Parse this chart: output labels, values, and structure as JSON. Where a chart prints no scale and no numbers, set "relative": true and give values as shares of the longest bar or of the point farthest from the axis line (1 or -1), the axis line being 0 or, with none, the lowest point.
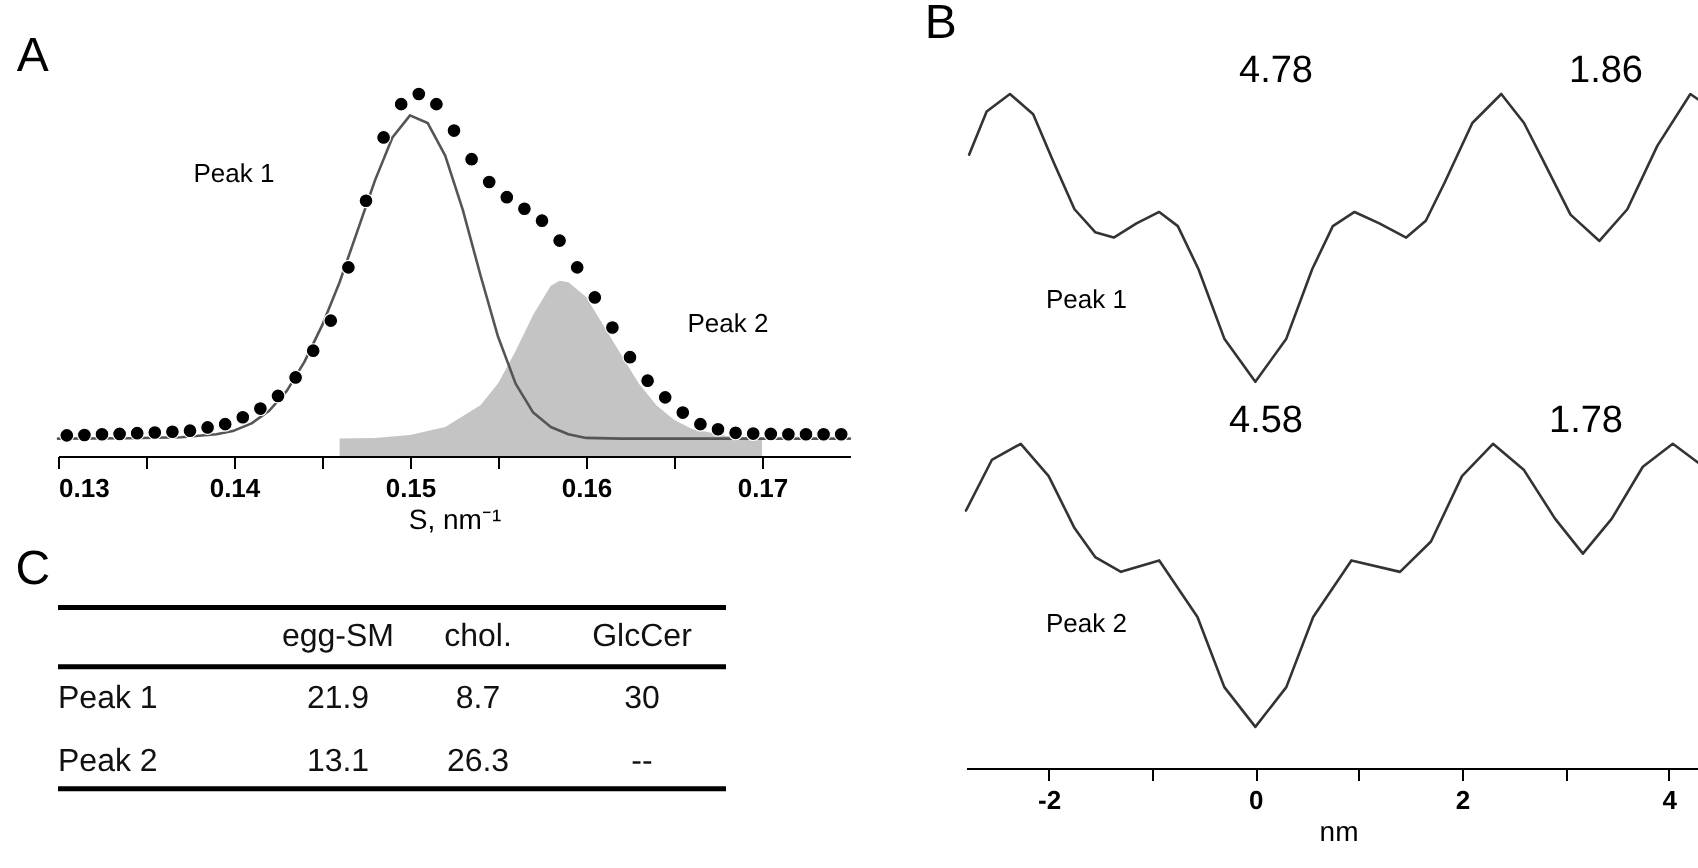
{
  "chart_data": [
    {
      "type": "scatter",
      "title": "A",
      "xlabel": "S, nm⁻¹",
      "relative": true,
      "xlim": [
        0.13,
        0.175
      ],
      "xticks": [
        0.13,
        {
          "value": 0.135,
          "label": null
        },
        0.14,
        {
          "value": 0.145,
          "label": null
        },
        0.15,
        {
          "value": 0.155,
          "label": null
        },
        0.16,
        {
          "value": 0.165,
          "label": null
        },
        0.17
      ],
      "annotations": [
        "Peak 1",
        "Peak 2"
      ],
      "series": [
        {
          "type": "area",
          "color": "#c4c4c4",
          "x": [
            0.146,
            0.148,
            0.15,
            0.152,
            0.154,
            0.155,
            0.156,
            0.157,
            0.158,
            0.1585,
            0.159,
            0.16,
            0.161,
            0.162,
            0.163,
            0.164,
            0.165,
            0.166,
            0.168,
            0.17
          ],
          "values": [
            0.048,
            0.05,
            0.058,
            0.08,
            0.14,
            0.2,
            0.29,
            0.39,
            0.47,
            0.484,
            0.48,
            0.44,
            0.36,
            0.28,
            0.2,
            0.14,
            0.1,
            0.075,
            0.055,
            0.05
          ]
        },
        {
          "type": "line",
          "color": "#555555",
          "x": [
            0.13,
            0.134,
            0.137,
            0.139,
            0.14,
            0.141,
            0.142,
            0.143,
            0.144,
            0.145,
            0.146,
            0.147,
            0.148,
            0.149,
            0.15,
            0.151,
            0.152,
            0.153,
            0.154,
            0.155,
            0.156,
            0.157,
            0.158,
            0.159,
            0.16,
            0.162,
            0.175
          ],
          "values": [
            0.048,
            0.049,
            0.052,
            0.06,
            0.07,
            0.09,
            0.125,
            0.18,
            0.26,
            0.36,
            0.48,
            0.62,
            0.76,
            0.88,
            0.941,
            0.92,
            0.83,
            0.68,
            0.5,
            0.33,
            0.2,
            0.12,
            0.08,
            0.06,
            0.05,
            0.048,
            0.048
          ]
        },
        {
          "type": "scatter",
          "color": "#000000",
          "marker": "circle",
          "x": [
            0.1305,
            0.1315,
            0.1325,
            0.1335,
            0.1345,
            0.1355,
            0.1365,
            0.1375,
            0.1385,
            0.1395,
            0.1405,
            0.1415,
            0.1425,
            0.1435,
            0.1445,
            0.1455,
            0.1465,
            0.1475,
            0.1485,
            0.1495,
            0.1505,
            0.1515,
            0.1525,
            0.1535,
            0.1545,
            0.1555,
            0.1565,
            0.1575,
            0.1585,
            0.1595,
            0.1605,
            0.1615,
            0.1625,
            0.1635,
            0.1645,
            0.1655,
            0.1665,
            0.1675,
            0.1685,
            0.1695,
            0.1705,
            0.1715,
            0.1725,
            0.1735,
            0.1745
          ],
          "values": [
            0.057,
            0.058,
            0.06,
            0.061,
            0.063,
            0.065,
            0.067,
            0.07,
            0.079,
            0.088,
            0.107,
            0.131,
            0.166,
            0.217,
            0.291,
            0.374,
            0.521,
            0.705,
            0.88,
            0.972,
            1.0,
            0.972,
            0.899,
            0.82,
            0.757,
            0.715,
            0.683,
            0.65,
            0.595,
            0.521,
            0.438,
            0.355,
            0.273,
            0.208,
            0.162,
            0.12,
            0.088,
            0.074,
            0.064,
            0.062,
            0.061,
            0.06,
            0.06,
            0.06,
            0.06
          ]
        }
      ]
    },
    {
      "type": "line",
      "title": "B",
      "xlabel": "nm",
      "relative": true,
      "xlim": [
        -2.8,
        4.4
      ],
      "xticks": [
        -2,
        {
          "value": -1,
          "label": null
        },
        0,
        {
          "value": 1,
          "label": null
        },
        2,
        {
          "value": 3,
          "label": null
        },
        4
      ],
      "annotations": [
        "4.78",
        "1.86",
        "4.58",
        "1.78"
      ],
      "series": [
        {
          "name": "Peak 1",
          "color": "#333333",
          "x": [
            -2.77,
            -2.6,
            -2.375,
            -2.15,
            -1.95,
            -1.75,
            -1.55,
            -1.37,
            -1.15,
            -0.93,
            -0.75,
            -0.55,
            -0.3,
            0,
            0.3,
            0.55,
            0.75,
            0.96,
            1.2,
            1.46,
            1.65,
            1.83,
            2.1,
            2.38,
            2.6,
            2.77,
            3.05,
            3.33,
            3.6,
            3.89,
            4.21,
            4.37
          ],
          "values": [
            0.91,
            0.974,
            1.0,
            0.97,
            0.898,
            0.829,
            0.795,
            0.787,
            0.808,
            0.825,
            0.804,
            0.74,
            0.637,
            0.573,
            0.637,
            0.74,
            0.804,
            0.825,
            0.808,
            0.787,
            0.812,
            0.868,
            0.957,
            1.0,
            0.957,
            0.906,
            0.821,
            0.782,
            0.829,
            0.923,
            1.0,
            0.983
          ]
        },
        {
          "name": "Peak 2",
          "color": "#333333",
          "x": [
            -2.8,
            -2.55,
            -2.27,
            -2.0,
            -1.75,
            -1.55,
            -1.3,
            -0.93,
            -0.56,
            -0.3,
            0,
            0.3,
            0.56,
            0.93,
            1.4,
            1.7,
            2.0,
            2.3,
            2.6,
            2.9,
            3.17,
            3.45,
            3.75,
            4.04,
            4.39
          ],
          "values": [
            0.382,
            0.457,
            0.481,
            0.433,
            0.356,
            0.313,
            0.291,
            0.308,
            0.224,
            0.12,
            0.061,
            0.12,
            0.224,
            0.308,
            0.291,
            0.336,
            0.433,
            0.481,
            0.442,
            0.37,
            0.318,
            0.37,
            0.447,
            0.481,
            0.441
          ]
        }
      ]
    },
    {
      "type": "other",
      "title": "C",
      "categories": [
        "egg-SM",
        "chol.",
        "GlcCer"
      ],
      "y_categories": [
        "Peak 1",
        "Peak 2"
      ],
      "cell_labels": [
        [
          "21.9",
          "8.7",
          "30"
        ],
        [
          "13.1",
          "26.3",
          "--"
        ]
      ]
    }
  ]
}
